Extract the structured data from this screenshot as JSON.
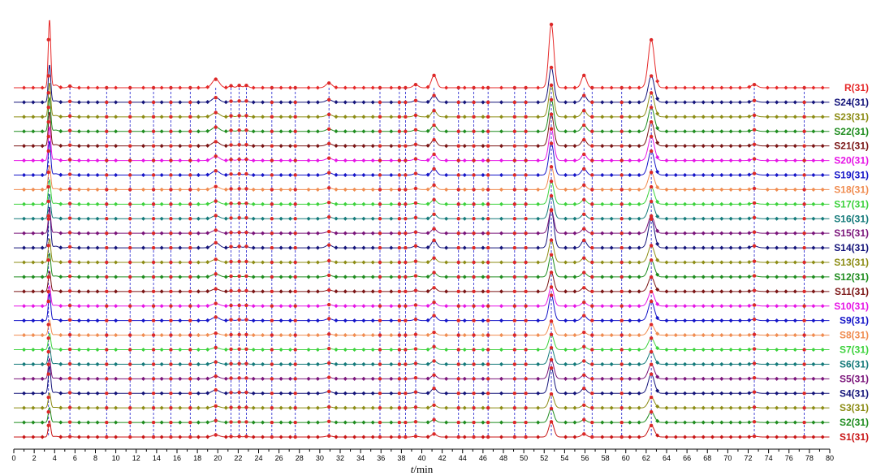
{
  "chart_data": {
    "type": "line",
    "title": "",
    "xlabel_italic": "t",
    "xlabel_unit": "/min",
    "xlim": [
      0,
      80
    ],
    "x_ticks": [
      0,
      2,
      4,
      6,
      8,
      10,
      12,
      14,
      16,
      18,
      20,
      22,
      24,
      26,
      28,
      30,
      32,
      34,
      36,
      38,
      40,
      42,
      44,
      46,
      48,
      50,
      52,
      54,
      56,
      58,
      60,
      62,
      64,
      66,
      68,
      70,
      72,
      74,
      76,
      78,
      80
    ],
    "grid": false,
    "legend": "right-of-each-trace",
    "reference_lines_x": [
      3.4,
      5.5,
      9.1,
      11.4,
      13.7,
      15.4,
      17.3,
      19.8,
      21.3,
      22.1,
      22.8,
      25.3,
      27.6,
      30.9,
      35.9,
      37.8,
      38.4,
      39.4,
      41.2,
      43.6,
      45.1,
      46.5,
      49.1,
      50.2,
      52.7,
      55.9,
      56.7,
      59.6,
      62.5,
      72.6,
      77.5
    ],
    "peaks": [
      {
        "t": 3.5,
        "height": 88,
        "width": 0.12
      },
      {
        "t": 4.1,
        "height": 3.5,
        "width": 0.25
      },
      {
        "t": 5.5,
        "height": 2.0,
        "width": 0.2
      },
      {
        "t": 19.8,
        "height": 11,
        "width": 0.35
      },
      {
        "t": 21.3,
        "height": 2.5,
        "width": 0.2
      },
      {
        "t": 22.1,
        "height": 3.0,
        "width": 0.2
      },
      {
        "t": 22.8,
        "height": 3.0,
        "width": 0.2
      },
      {
        "t": 30.9,
        "height": 6,
        "width": 0.3
      },
      {
        "t": 39.4,
        "height": 4,
        "width": 0.25
      },
      {
        "t": 41.2,
        "height": 16,
        "width": 0.25
      },
      {
        "t": 52.7,
        "height": 82,
        "width": 0.25
      },
      {
        "t": 55.9,
        "height": 16,
        "width": 0.25
      },
      {
        "t": 62.5,
        "height": 62,
        "width": 0.3
      },
      {
        "t": 72.6,
        "height": 4,
        "width": 0.3
      }
    ],
    "series": [
      {
        "name": "S1(31)",
        "color": "#c81414",
        "scale": 0.24
      },
      {
        "name": "S2(31)",
        "color": "#1e8c1e",
        "scale": 0.22
      },
      {
        "name": "S3(31)",
        "color": "#8c8c14",
        "scale": 0.22
      },
      {
        "name": "S4(31)",
        "color": "#14147a",
        "scale": 0.4
      },
      {
        "name": "S5(31)",
        "color": "#7a147a",
        "scale": 0.3
      },
      {
        "name": "S6(31)",
        "color": "#147a7a",
        "scale": 0.26
      },
      {
        "name": "S7(31)",
        "color": "#3cd23c",
        "scale": 0.24
      },
      {
        "name": "S8(31)",
        "color": "#f08c50",
        "scale": 0.22
      },
      {
        "name": "S9(31)",
        "color": "#1414c8",
        "scale": 0.4
      },
      {
        "name": "S10(31)",
        "color": "#e614e6",
        "scale": 0.3
      },
      {
        "name": "S11(31)",
        "color": "#7a1414",
        "scale": 0.3
      },
      {
        "name": "S12(31)",
        "color": "#1e8c1e",
        "scale": 0.35
      },
      {
        "name": "S13(31)",
        "color": "#8c8c14",
        "scale": 0.35
      },
      {
        "name": "S14(31)",
        "color": "#14147a",
        "scale": 0.6
      },
      {
        "name": "S15(31)",
        "color": "#7a147a",
        "scale": 0.36
      },
      {
        "name": "S16(31)",
        "color": "#147a7a",
        "scale": 0.36
      },
      {
        "name": "S17(31)",
        "color": "#3cd23c",
        "scale": 0.36
      },
      {
        "name": "S18(31)",
        "color": "#f08c50",
        "scale": 0.36
      },
      {
        "name": "S19(31)",
        "color": "#1414c8",
        "scale": 0.5
      },
      {
        "name": "S20(31)",
        "color": "#e614e6",
        "scale": 0.5
      },
      {
        "name": "S21(31)",
        "color": "#7a1414",
        "scale": 0.5
      },
      {
        "name": "S22(31)",
        "color": "#1e8c1e",
        "scale": 0.5
      },
      {
        "name": "S23(31)",
        "color": "#8c8c14",
        "scale": 0.5
      },
      {
        "name": "S24(31)",
        "color": "#14147a",
        "scale": 0.55
      },
      {
        "name": "R(31)",
        "color": "#e62828",
        "scale": 1.0
      }
    ],
    "colors": {
      "reference_line": "#1e1ecc",
      "common_peak_marker": "#dc2828",
      "axis": "#000000"
    }
  }
}
